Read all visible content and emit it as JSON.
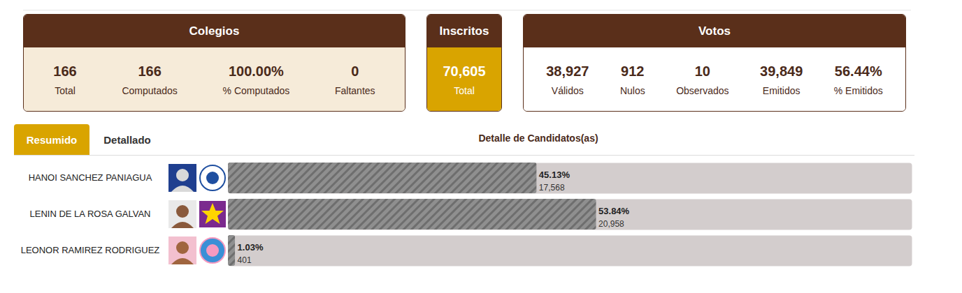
{
  "panels": [
    {
      "title": "Colegios",
      "items": [
        {
          "value": "166",
          "label": "Total"
        },
        {
          "value": "166",
          "label": "Computados"
        },
        {
          "value": "100.00%",
          "label": "% Computados"
        },
        {
          "value": "0",
          "label": "Faltantes"
        }
      ]
    },
    {
      "title": "Inscritos",
      "items": [
        {
          "value": "70,605",
          "label": "Total"
        }
      ]
    },
    {
      "title": "Votos",
      "items": [
        {
          "value": "38,927",
          "label": "Válidos"
        },
        {
          "value": "912",
          "label": "Nulos"
        },
        {
          "value": "10",
          "label": "Observados"
        },
        {
          "value": "39,849",
          "label": "Emitidos"
        },
        {
          "value": "56.44%",
          "label": "% Emitidos"
        }
      ]
    }
  ],
  "tabs": [
    {
      "label": "Resumido",
      "active": true
    },
    {
      "label": "Detallado",
      "active": false
    }
  ],
  "chart_data": {
    "type": "bar",
    "orientation": "horizontal",
    "title": "Detalle de Candidatos(as)",
    "categories": [
      "HANOI SANCHEZ PANIAGUA",
      "LENIN DE LA ROSA GALVAN",
      "LEONOR RAMIREZ RODRIGUEZ"
    ],
    "values": [
      45.13,
      53.84,
      1.03
    ],
    "value_labels": [
      "45.13%",
      "53.84%",
      "1.03%"
    ],
    "votes": [
      17568,
      20958,
      401
    ],
    "vote_labels": [
      "17,568",
      "20,958",
      "401"
    ],
    "xlim": [
      0,
      100
    ],
    "tick_labels": false,
    "data_labels": true
  }
}
